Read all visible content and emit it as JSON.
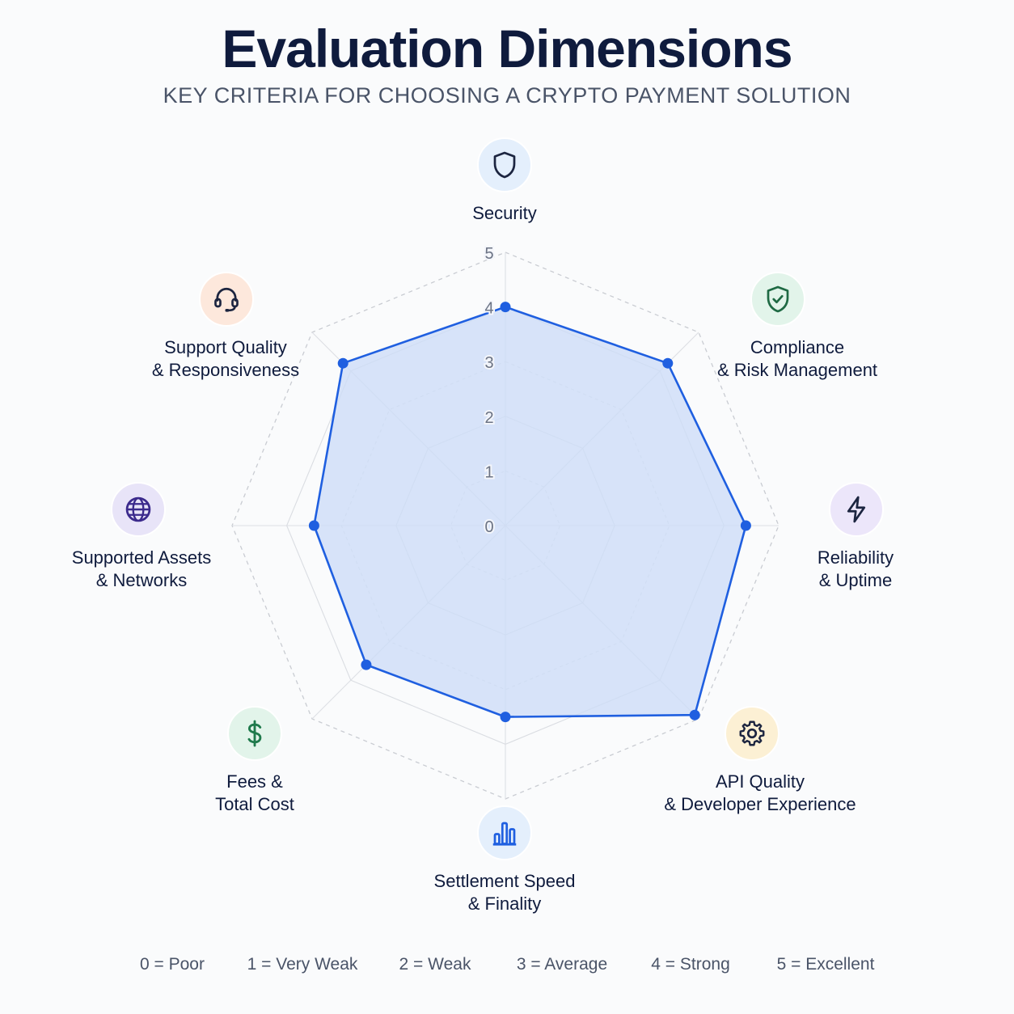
{
  "title": "Evaluation Dimensions",
  "subtitle": "KEY CRITERIA FOR CHOOSING A CRYPTO PAYMENT SOLUTION",
  "colors": {
    "series": "#1f5fe0",
    "fill": "#cddcf7",
    "grid": "#c7cad0"
  },
  "chart_data": {
    "type": "radar",
    "title": "Evaluation Dimensions",
    "subtitle": "KEY CRITERIA FOR CHOOSING A CRYPTO PAYMENT SOLUTION",
    "range": [
      0,
      5
    ],
    "ticks": [
      "0",
      "1",
      "2",
      "3",
      "4",
      "5"
    ],
    "grid": true,
    "grid_shape": "octagon",
    "axes": [
      {
        "label_lines": [
          "Security"
        ],
        "icon": "shield-icon",
        "icon_bg": "#e4effc",
        "icon_color": "#1c2540"
      },
      {
        "label_lines": [
          "Compliance",
          "& Risk Management"
        ],
        "icon": "shield-check-icon",
        "icon_bg": "#e2f4ea",
        "icon_color": "#1f6a44"
      },
      {
        "label_lines": [
          "Reliability",
          "& Uptime"
        ],
        "icon": "lightning-icon",
        "icon_bg": "#ece6fa",
        "icon_color": "#1c2540"
      },
      {
        "label_lines": [
          "API Quality",
          "& Developer Experience"
        ],
        "icon": "gear-icon",
        "icon_bg": "#fcf0d4",
        "icon_color": "#1c2540"
      },
      {
        "label_lines": [
          "Settlement Speed",
          "& Finality"
        ],
        "icon": "bar-chart-icon",
        "icon_bg": "#e4effc",
        "icon_color": "#1f5fe0"
      },
      {
        "label_lines": [
          "Fees &",
          "Total Cost"
        ],
        "icon": "dollar-icon",
        "icon_bg": "#e2f4ea",
        "icon_color": "#1f7a4c"
      },
      {
        "label_lines": [
          "Supported Assets",
          "& Networks"
        ],
        "icon": "globe-icon",
        "icon_bg": "#e8e4f8",
        "icon_color": "#3b2a8c"
      },
      {
        "label_lines": [
          "Support Quality",
          "& Responsiveness"
        ],
        "icon": "headset-icon",
        "icon_bg": "#fde8dc",
        "icon_color": "#1c2540"
      }
    ],
    "series": [
      {
        "values": [
          4.0,
          4.2,
          4.4,
          4.9,
          3.5,
          3.6,
          3.5,
          4.2
        ]
      }
    ]
  },
  "legend": [
    "0 = Poor",
    "1 = Very Weak",
    "2 = Weak",
    "3 = Average",
    "4 = Strong",
    "5 = Excellent"
  ]
}
